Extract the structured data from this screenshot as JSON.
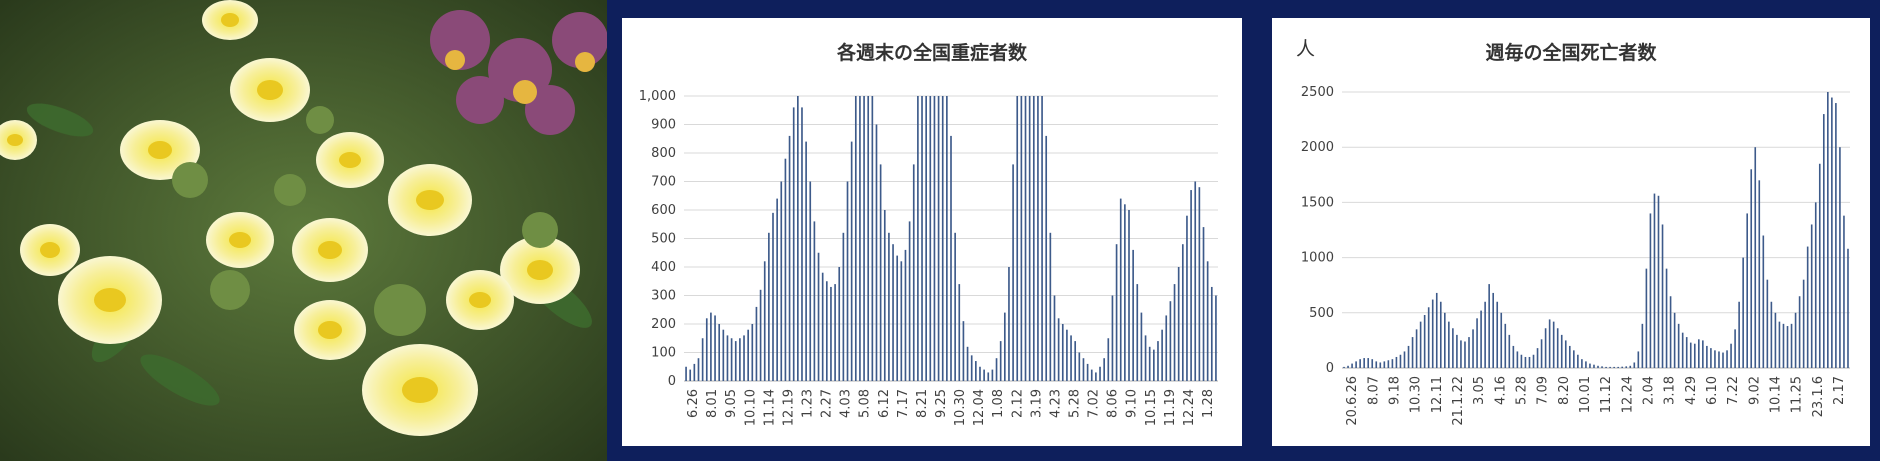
{
  "photo": {
    "description_icon": "flower-photo"
  },
  "chart_data": [
    {
      "type": "bar",
      "title": "各週末の全国重症者数",
      "xlabel": "",
      "ylabel": "",
      "ylim": [
        0,
        1000
      ],
      "yticks": [
        "0",
        "100",
        "200",
        "300",
        "400",
        "500",
        "600",
        "700",
        "800",
        "900",
        "1,000"
      ],
      "xtick_labels": [
        "6.26",
        "8.01",
        "9.05",
        "10.10",
        "11.14",
        "12.19",
        "1.23",
        "2.27",
        "4.03",
        "5.08",
        "6.12",
        "7.17",
        "8.21",
        "9.25",
        "10.30",
        "12.04",
        "1.08",
        "2.12",
        "3.19",
        "4.23",
        "5.28",
        "7.02",
        "8.06",
        "9.10",
        "10.15",
        "11.19",
        "12.24",
        "1.28"
      ],
      "grid": true,
      "bar_color": "#3d5a8a",
      "values": [
        50,
        40,
        60,
        80,
        150,
        220,
        240,
        230,
        200,
        180,
        160,
        150,
        140,
        150,
        160,
        180,
        200,
        260,
        320,
        420,
        520,
        590,
        640,
        700,
        780,
        860,
        960,
        1000,
        960,
        840,
        700,
        560,
        450,
        380,
        350,
        330,
        340,
        400,
        520,
        700,
        840,
        1000,
        1000,
        1000,
        1000,
        1000,
        900,
        760,
        600,
        520,
        480,
        440,
        420,
        460,
        560,
        760,
        1000,
        1000,
        1000,
        1000,
        1000,
        1000,
        1000,
        1000,
        860,
        520,
        340,
        210,
        120,
        90,
        70,
        50,
        40,
        30,
        40,
        80,
        140,
        240,
        400,
        760,
        1000,
        1000,
        1000,
        1000,
        1000,
        1000,
        1000,
        860,
        520,
        300,
        220,
        200,
        180,
        160,
        140,
        100,
        80,
        60,
        40,
        30,
        50,
        80,
        150,
        300,
        480,
        640,
        620,
        600,
        460,
        340,
        240,
        160,
        120,
        110,
        140,
        180,
        230,
        280,
        340,
        400,
        480,
        580,
        670,
        700,
        680,
        540,
        420,
        330,
        300
      ]
    },
    {
      "type": "bar",
      "title": "週毎の全国死亡者数",
      "unit_label": "人",
      "xlabel": "",
      "ylabel": "",
      "ylim": [
        0,
        2500
      ],
      "yticks": [
        "0",
        "500",
        "1000",
        "1500",
        "2000",
        "2500"
      ],
      "xtick_labels": [
        "20.6.26",
        "8.07",
        "9.18",
        "10.30",
        "12.11",
        "21.1.22",
        "3.05",
        "4.16",
        "5.28",
        "7.09",
        "8.20",
        "10.01",
        "11.12",
        "12.24",
        "2.04",
        "3.18",
        "4.29",
        "6.10",
        "7.22",
        "9.02",
        "10.14",
        "11.25",
        "23.1.6",
        "2.17"
      ],
      "grid": true,
      "bar_color": "#3d5a8a",
      "values": [
        10,
        20,
        40,
        60,
        80,
        90,
        90,
        80,
        60,
        50,
        60,
        70,
        80,
        100,
        120,
        150,
        200,
        280,
        350,
        420,
        480,
        550,
        620,
        680,
        600,
        500,
        420,
        360,
        300,
        250,
        240,
        280,
        350,
        450,
        520,
        600,
        760,
        680,
        600,
        500,
        400,
        300,
        200,
        150,
        120,
        100,
        100,
        120,
        180,
        260,
        360,
        440,
        420,
        360,
        300,
        250,
        200,
        160,
        120,
        80,
        60,
        40,
        30,
        20,
        15,
        10,
        10,
        10,
        10,
        12,
        15,
        20,
        50,
        150,
        400,
        900,
        1400,
        1580,
        1560,
        1300,
        900,
        650,
        500,
        400,
        320,
        280,
        230,
        220,
        260,
        250,
        200,
        180,
        160,
        150,
        140,
        160,
        220,
        350,
        600,
        1000,
        1400,
        1800,
        2000,
        1700,
        1200,
        800,
        600,
        500,
        420,
        400,
        380,
        400,
        500,
        650,
        800,
        1100,
        1300,
        1500,
        1850,
        2300,
        2500,
        2450,
        2400,
        2000,
        1380,
        1080
      ]
    }
  ]
}
